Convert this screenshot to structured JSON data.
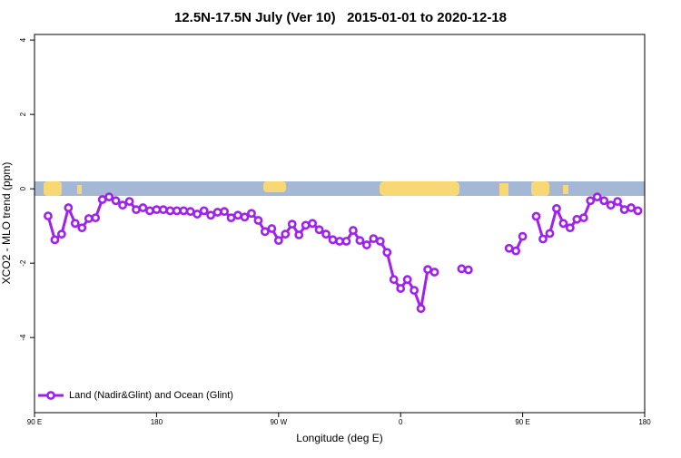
{
  "chart_data": {
    "type": "line",
    "title": "12.5N-17.5N July (Ver 10)   2015-01-01 to 2020-12-18",
    "xlabel": "Longitude (deg E)",
    "ylabel": "XCO2 - MLO trend (ppm)",
    "x": [
      100,
      105,
      110,
      115,
      120,
      125,
      130,
      135,
      140,
      145,
      150,
      155,
      160,
      165,
      170,
      175,
      180,
      185,
      190,
      195,
      200,
      205,
      210,
      215,
      220,
      225,
      230,
      235,
      240,
      245,
      250,
      255,
      260,
      265,
      270,
      275,
      280,
      285,
      290,
      295,
      300,
      305,
      310,
      315,
      320,
      325,
      330,
      335,
      340,
      345,
      350,
      355,
      360,
      365,
      370,
      375,
      380,
      385,
      390,
      395,
      400,
      405,
      410,
      415,
      420,
      425,
      430,
      435,
      440,
      445,
      450,
      455,
      460,
      465,
      470,
      475,
      480,
      485,
      490,
      495,
      500,
      505,
      510,
      515,
      520,
      525,
      530,
      535
    ],
    "series": [
      {
        "name": "Land (Nadir&Glint) and Ocean (Glint)",
        "color": "#a020f0",
        "values": [
          -0.73,
          -1.37,
          -1.22,
          -0.51,
          -0.93,
          -1.05,
          -0.8,
          -0.78,
          -0.29,
          -0.22,
          -0.32,
          -0.44,
          -0.34,
          -0.56,
          -0.51,
          -0.59,
          -0.56,
          -0.56,
          -0.59,
          -0.59,
          -0.59,
          -0.61,
          -0.68,
          -0.59,
          -0.71,
          -0.63,
          -0.61,
          -0.78,
          -0.71,
          -0.76,
          -0.66,
          -0.85,
          -1.15,
          -1.07,
          -1.39,
          -1.22,
          -0.95,
          -1.24,
          -0.98,
          -0.93,
          -1.1,
          -1.22,
          -1.37,
          -1.41,
          -1.41,
          -1.12,
          -1.39,
          -1.51,
          -1.34,
          -1.41,
          -1.71,
          -2.44,
          -2.68,
          -2.44,
          -2.73,
          -3.22,
          -2.17,
          -2.24,
          null,
          null,
          null,
          -2.15,
          -2.18,
          null,
          null,
          null,
          null,
          null,
          -1.6,
          -1.67,
          -1.28,
          null,
          -0.74,
          -1.35,
          -1.2,
          -0.53,
          -0.93,
          -1.05,
          -0.82,
          -0.78,
          -0.32,
          -0.22,
          -0.32,
          -0.44,
          -0.34,
          -0.56,
          -0.51,
          -0.59
        ]
      }
    ],
    "xlim": [
      90,
      540
    ],
    "xticks": [
      {
        "value": 90,
        "label": "90 E"
      },
      180,
      {
        "value": 270,
        "label": "90 W"
      },
      {
        "value": 360,
        "label": "0"
      },
      {
        "value": 450,
        "label": "90 E"
      },
      180.0001
    ],
    "ylim": [
      -6.02,
      4.15
    ],
    "yticks": [
      4,
      2,
      0,
      -2,
      -4
    ],
    "legend": "bottom-left"
  }
}
